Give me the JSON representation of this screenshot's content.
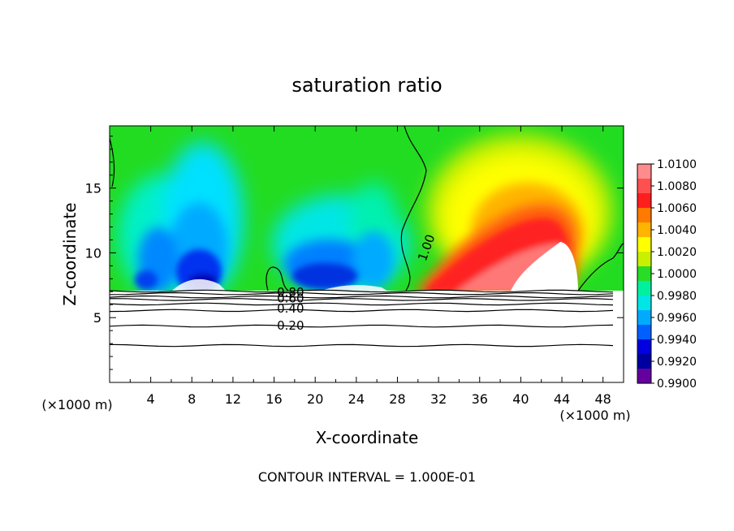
{
  "chart_data": {
    "type": "heatmap",
    "title": "saturation ratio",
    "xlabel": "X-coordinate",
    "ylabel": "Z-coordinate",
    "x_unit_left": "(×1000 m)",
    "x_unit_right": "(×1000 m)",
    "footer": "CONTOUR INTERVAL = 1.000E-01",
    "xlim": [
      0,
      50
    ],
    "ylim": [
      0,
      19.8
    ],
    "x_ticks": [
      4,
      8,
      12,
      16,
      20,
      24,
      28,
      32,
      36,
      40,
      44,
      48
    ],
    "y_ticks": [
      5,
      10,
      15
    ],
    "colorbar": {
      "min": 0.99,
      "max": 1.01,
      "labels": [
        "1.0100",
        "1.0080",
        "1.0060",
        "1.0040",
        "1.0020",
        "1.0000",
        "0.9980",
        "0.9960",
        "0.9940",
        "0.9920",
        "0.9900"
      ],
      "colors": [
        "#ff8c8c",
        "#ff5050",
        "#ff1e1e",
        "#ff7a00",
        "#ffb400",
        "#ffff00",
        "#c8f000",
        "#28dc28",
        "#00f0a0",
        "#00e6e6",
        "#00aaff",
        "#0060ff",
        "#0000e0",
        "#0000a0",
        "#6400a0"
      ]
    },
    "cloud_base_z": 7.2,
    "contour_lines": [
      {
        "label": "1.00",
        "x": 31.2,
        "y": 10.6
      },
      {
        "label": "0.80",
        "x": 17.6,
        "y": 6.95
      },
      {
        "label": "0.60",
        "x": 17.6,
        "y": 6.5
      },
      {
        "label": "0.40",
        "x": 17.6,
        "y": 5.7
      },
      {
        "label": "0.20",
        "x": 17.6,
        "y": 4.4
      }
    ],
    "levels_below_base": [
      7.05,
      6.85,
      6.6,
      6.4,
      6.05,
      5.55,
      4.35,
      2.85
    ]
  }
}
